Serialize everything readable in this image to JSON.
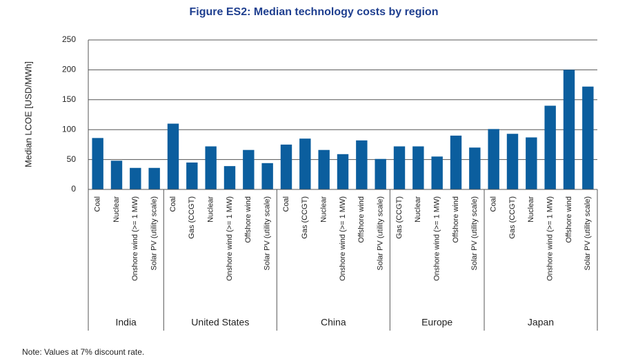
{
  "chart_data": {
    "type": "bar",
    "title": "Figure ES2: Median technology costs by region",
    "y_label": "Median LCOE [USD/MWh]",
    "note": "Note: Values at 7% discount rate.",
    "color": "#0b5e9e",
    "ylim": [
      0,
      250
    ],
    "yticks": [
      0,
      50,
      100,
      150,
      200,
      250
    ],
    "grid": true,
    "groups": [
      {
        "name": "India",
        "categories": [
          "Coal",
          "Nuclear",
          "Onshore wind (>= 1 MW)",
          "Solar PV (utility scale)"
        ],
        "values": [
          86,
          48,
          36,
          36
        ]
      },
      {
        "name": "United States",
        "categories": [
          "Coal",
          "Gas (CCGT)",
          "Nuclear",
          "Onshore wind (>= 1 MW)",
          "Offshore wind",
          "Solar PV (utility scale)"
        ],
        "values": [
          110,
          45,
          72,
          39,
          66,
          44
        ]
      },
      {
        "name": "China",
        "categories": [
          "Coal",
          "Gas (CCGT)",
          "Nuclear",
          "Onshore wind (>= 1 MW)",
          "Offshore wind",
          "Solar PV (utility scale)"
        ],
        "values": [
          75,
          85,
          66,
          59,
          82,
          51
        ]
      },
      {
        "name": "Europe",
        "categories": [
          "Gas (CCGT)",
          "Nuclear",
          "Onshore wind (>= 1 MW)",
          "Offshore wind",
          "Solar PV (utility scale)"
        ],
        "values": [
          72,
          72,
          55,
          90,
          70
        ]
      },
      {
        "name": "Japan",
        "categories": [
          "Coal",
          "Gas (CCGT)",
          "Nuclear",
          "Onshore wind (>= 1 MW)",
          "Offshore wind",
          "Solar PV (utility scale)"
        ],
        "values": [
          101,
          93,
          87,
          140,
          200,
          172
        ]
      }
    ]
  }
}
